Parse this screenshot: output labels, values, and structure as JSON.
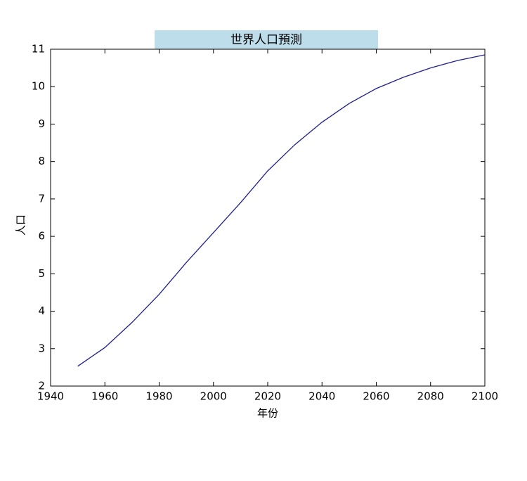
{
  "chart_data": {
    "type": "line",
    "title": "世界人口預測",
    "xlabel": "年份",
    "ylabel": "人口",
    "x": [
      1950,
      1960,
      1970,
      1980,
      1990,
      2000,
      2010,
      2020,
      2030,
      2040,
      2050,
      2060,
      2070,
      2080,
      2090,
      2100
    ],
    "series": [
      {
        "name": "人口",
        "color": "#1f1f8f",
        "values": [
          2.53,
          3.03,
          3.7,
          4.45,
          5.3,
          6.1,
          6.9,
          7.75,
          8.45,
          9.05,
          9.55,
          9.95,
          10.25,
          10.5,
          10.7,
          10.85
        ]
      }
    ],
    "xlim": [
      1940,
      2100
    ],
    "xticks": [
      1940,
      1960,
      1980,
      2000,
      2020,
      2040,
      2060,
      2080,
      2100
    ],
    "ylim": [
      2,
      11
    ],
    "yticks": [
      2,
      3,
      4,
      5,
      6,
      7,
      8,
      9,
      10,
      11
    ],
    "title_background": "#bcdde9"
  }
}
